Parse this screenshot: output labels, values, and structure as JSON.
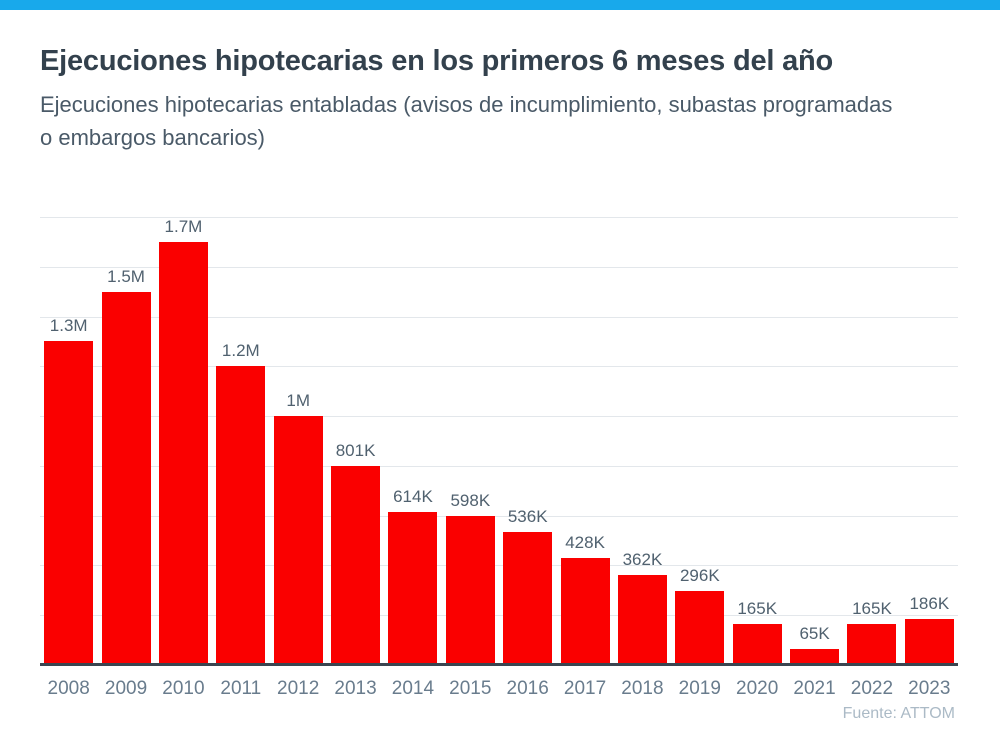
{
  "header": {
    "title": "Ejecuciones hipotecarias en los primeros 6 meses del año",
    "subtitle": "Ejecuciones hipotecarias entabladas (avisos de incumplimiento, subastas programadas o embargos bancarios)"
  },
  "footer": {
    "source": "Fuente: ATTOM"
  },
  "colors": {
    "accent": "#18A9EB",
    "bar": "#FA0000",
    "title_color": "#33414D",
    "subtitle_color": "#4A5A68",
    "label_color": "#50616F",
    "year_color": "#697C8D",
    "axis_color": "#3A4550",
    "grid_color": "#E3E7EB",
    "source_color": "#ABBAC6"
  },
  "chart_data": {
    "type": "bar",
    "title": "Ejecuciones hipotecarias en los primeros 6 meses del año",
    "subtitle": "Ejecuciones hipotecarias entabladas (avisos de incumplimiento, subastas programadas o embargos bancarios)",
    "source": "Fuente: ATTOM",
    "categories": [
      "2008",
      "2009",
      "2010",
      "2011",
      "2012",
      "2013",
      "2014",
      "2015",
      "2016",
      "2017",
      "2018",
      "2019",
      "2020",
      "2021",
      "2022",
      "2023"
    ],
    "values": [
      1300000,
      1500000,
      1700000,
      1200000,
      1000000,
      801000,
      614000,
      598000,
      536000,
      428000,
      362000,
      296000,
      165000,
      65000,
      165000,
      186000
    ],
    "labels": [
      "1.3M",
      "1.5M",
      "1.7M",
      "1.2M",
      "1M",
      "801K",
      "614K",
      "598K",
      "536K",
      "428K",
      "362K",
      "296K",
      "165K",
      "65K",
      "165K",
      "186K"
    ],
    "xlabel": "",
    "ylabel": "",
    "ylim": [
      0,
      1800000
    ],
    "gridline_count": 9,
    "grid": "horizontal",
    "legend": "none",
    "bar_color": "#FA0000"
  }
}
